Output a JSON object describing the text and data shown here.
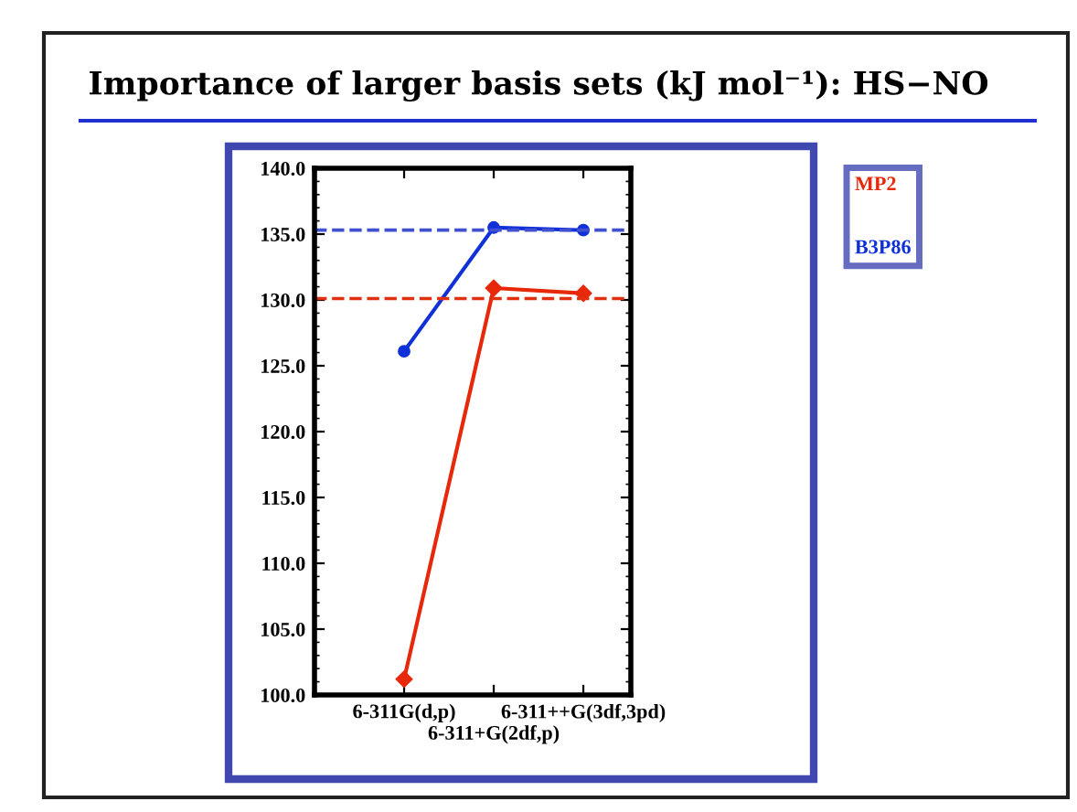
{
  "chart_data": {
    "type": "line",
    "title": "Importance of larger basis sets (kJ mol⁻¹): HS−NO",
    "categories": [
      "6-311G(d,p)",
      "6-311+G(2df,p)",
      "6-311++G(3df,3pd)"
    ],
    "series": [
      {
        "name": "MP2",
        "color": "#e8280a",
        "values": [
          101.2,
          130.9,
          130.5
        ],
        "marker": "diamond"
      },
      {
        "name": "B3P86",
        "color": "#1030d8",
        "values": [
          126.1,
          135.5,
          135.3
        ],
        "marker": "circle"
      }
    ],
    "ylim": [
      100,
      140
    ],
    "yticks": [
      {
        "value": 100,
        "label": "100.0"
      },
      {
        "value": 105,
        "label": "105.0"
      },
      {
        "value": 110,
        "label": "110.0"
      },
      {
        "value": 115,
        "label": "115.0"
      },
      {
        "value": 120,
        "label": "120.0"
      },
      {
        "value": 125,
        "label": "125.0"
      },
      {
        "value": 130,
        "label": "130.0"
      },
      {
        "value": 135,
        "label": "135.0"
      },
      {
        "value": 140,
        "label": "140.0"
      }
    ],
    "ref_lines": [
      {
        "axis": "y",
        "value": 135.3,
        "color": "#4050d0",
        "line_style": "dashed"
      },
      {
        "axis": "y",
        "value": 130.1,
        "color": "#e03010",
        "line_style": "dashed"
      }
    ],
    "grid": false,
    "legend": "top right",
    "line_style": "solid"
  }
}
